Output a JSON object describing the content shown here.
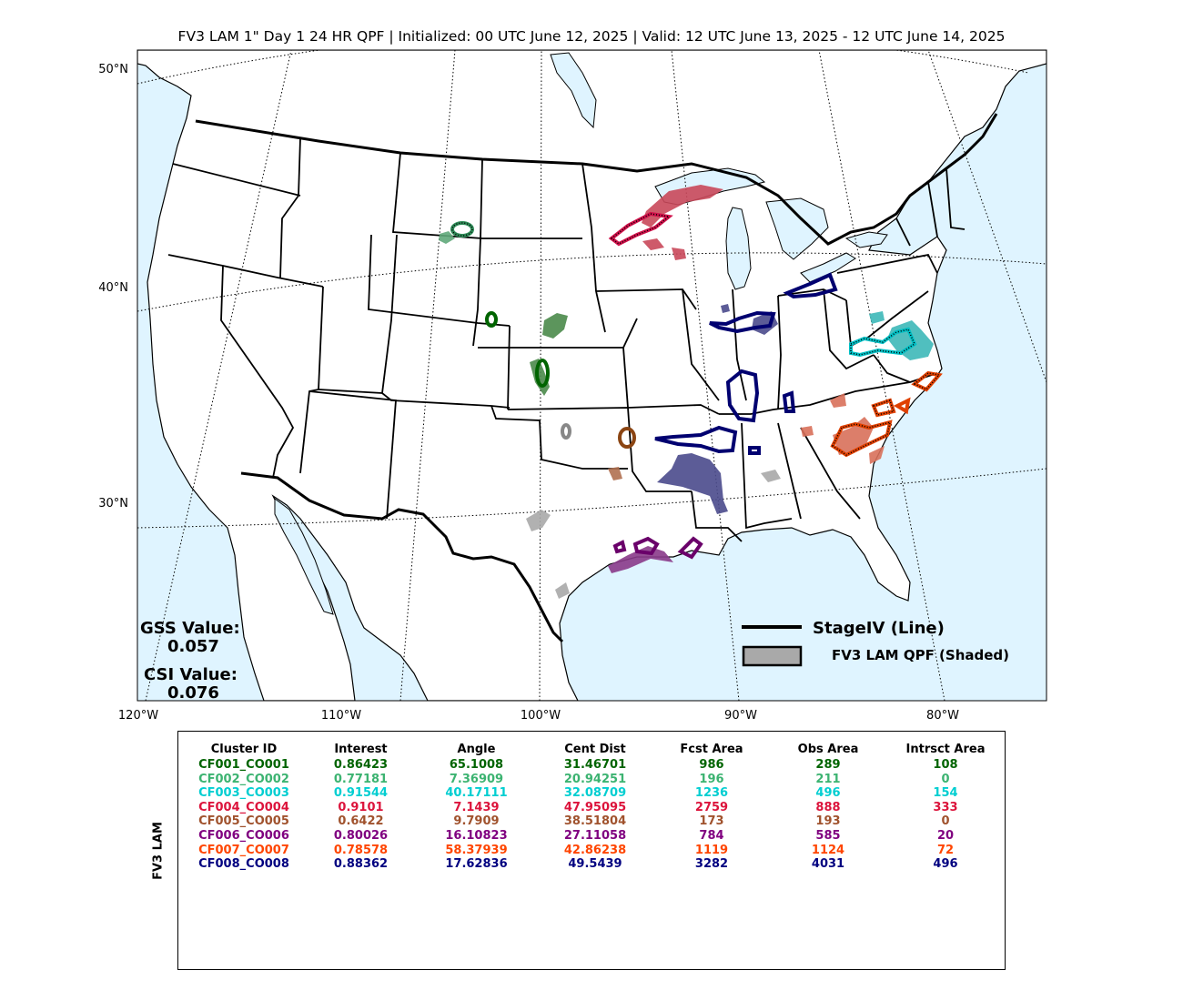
{
  "title": "FV3 LAM 1\" Day 1 24 HR QPF | Initialized: 00 UTC June 12, 2025 | Valid: 12 UTC June 13, 2025 - 12 UTC June 14, 2025",
  "map": {
    "lat_labels": [
      "50°N",
      "40°N",
      "30°N"
    ],
    "lon_labels": [
      "120°W",
      "110°W",
      "100°W",
      "90°W",
      "80°W"
    ],
    "colors": {
      "ocean": "#dff4ff",
      "land": "#ffffff",
      "boundary": "#000000"
    }
  },
  "scores": {
    "gss_label": "GSS Value:",
    "gss_value": "0.057",
    "csi_label": "CSI Value:",
    "csi_value": "0.076"
  },
  "legend": {
    "line_label": "StageIV (Line)",
    "shaded_label": "FV3 LAM QPF (Shaded)"
  },
  "table": {
    "side_label": "FV3 LAM",
    "columns": [
      "Cluster ID",
      "Interest",
      "Angle",
      "Cent Dist",
      "Fcst Area",
      "Obs Area",
      "Intrsct Area"
    ],
    "rows": [
      {
        "color": "#006400",
        "cells": [
          "CF001_CO001",
          "0.86423",
          "65.1008",
          "31.46701",
          "986",
          "289",
          "108"
        ]
      },
      {
        "color": "#3cb371",
        "cells": [
          "CF002_CO002",
          "0.77181",
          "7.36909",
          "20.94251",
          "196",
          "211",
          "0"
        ]
      },
      {
        "color": "#00ced1",
        "cells": [
          "CF003_CO003",
          "0.91544",
          "40.17111",
          "32.08709",
          "1236",
          "496",
          "154"
        ]
      },
      {
        "color": "#dc143c",
        "cells": [
          "CF004_CO004",
          "0.9101",
          "7.1439",
          "47.95095",
          "2759",
          "888",
          "333"
        ]
      },
      {
        "color": "#a0522d",
        "cells": [
          "CF005_CO005",
          "0.6422",
          "9.7909",
          "38.51804",
          "173",
          "193",
          "0"
        ]
      },
      {
        "color": "#800080",
        "cells": [
          "CF006_CO006",
          "0.80026",
          "16.10823",
          "27.11058",
          "784",
          "585",
          "20"
        ]
      },
      {
        "color": "#ff4500",
        "cells": [
          "CF007_CO007",
          "0.78578",
          "58.37939",
          "42.86238",
          "1119",
          "1124",
          "72"
        ]
      },
      {
        "color": "#000080",
        "cells": [
          "CF008_CO008",
          "0.88362",
          "17.62836",
          "49.5439",
          "3282",
          "4031",
          "496"
        ]
      }
    ]
  }
}
